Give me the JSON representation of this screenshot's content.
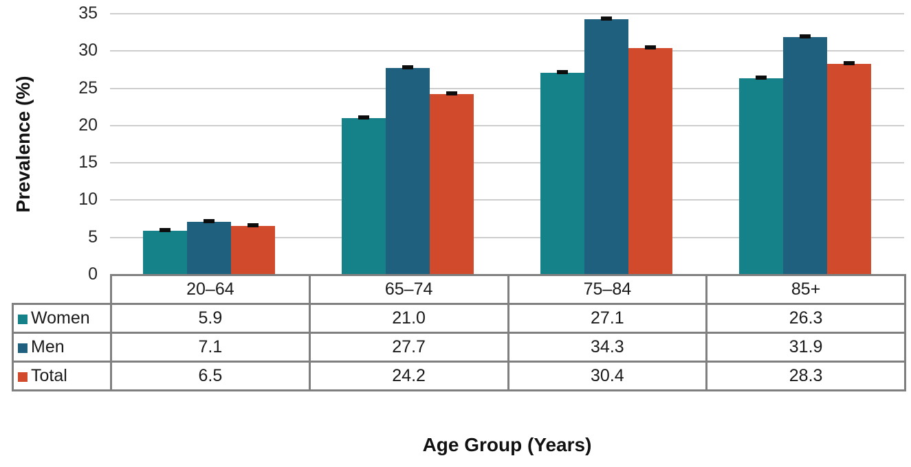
{
  "chart_data": {
    "type": "bar",
    "title": "",
    "xlabel": "Age Group (Years)",
    "ylabel": "Prevalence (%)",
    "categories": [
      "20–64",
      "65–74",
      "75–84",
      "85+"
    ],
    "series": [
      {
        "name": "Women",
        "values": [
          5.9,
          21.0,
          27.1,
          26.3
        ],
        "color": "#15828A"
      },
      {
        "name": "Men",
        "values": [
          7.1,
          27.7,
          34.3,
          31.9
        ],
        "color": "#20607F"
      },
      {
        "name": "Total",
        "values": [
          6.5,
          24.2,
          30.4,
          28.3
        ],
        "color": "#D14A2B"
      }
    ],
    "ylim": [
      0,
      35
    ],
    "ytick_step": 5,
    "grid": true,
    "error_caps": true,
    "legend_position": "data-table-left",
    "style": {
      "gridline_color": "#CDCDCD",
      "table_border_color": "#7F7F7F",
      "error_cap_color": "#0D0D0D",
      "text_color": "#1A1A1A",
      "background_color": "#FFFFFF"
    }
  }
}
